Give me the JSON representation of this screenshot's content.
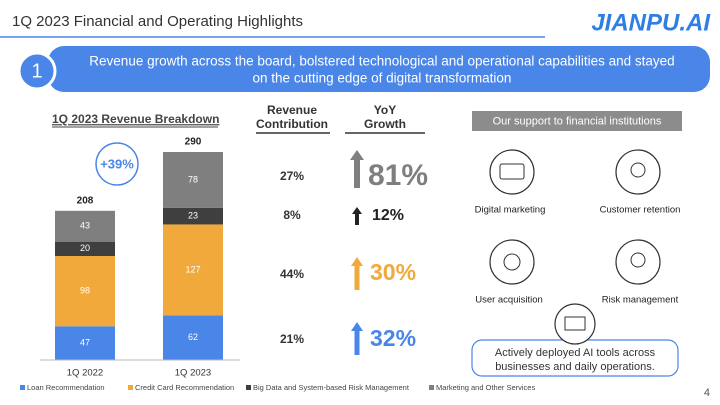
{
  "header": {
    "title": "1Q 2023 Financial and Operating Highlights",
    "logo": "JIANPU.AI",
    "page_number": "4"
  },
  "banner": {
    "number": "1",
    "lines": [
      "Revenue growth across the board, bolstered technological and operational capabilities and stayed",
      "on the cutting edge of digital transformation"
    ]
  },
  "chart_data": {
    "type": "stacked_bar",
    "title": "1Q 2023 Revenue Breakdown",
    "categories": [
      "1Q 2022",
      "1Q 2023"
    ],
    "series": [
      {
        "name": "Loan Recommendation",
        "color": "#4a86e8",
        "values": [
          47,
          62
        ]
      },
      {
        "name": "Credit Card Recommendation",
        "color": "#f2a93b",
        "values": [
          98,
          127
        ]
      },
      {
        "name": "Big Data and System-based Risk Management",
        "color": "#3f3f3f",
        "values": [
          20,
          23
        ]
      },
      {
        "name": "Marketing and Other Services",
        "color": "#7f7f7f",
        "values": [
          43,
          78
        ]
      }
    ],
    "totals": [
      208,
      290
    ],
    "annotation": "+39%"
  },
  "breakdown": {
    "headers": [
      [
        "Revenue",
        "Contribution"
      ],
      [
        "YoY",
        "Growth"
      ]
    ],
    "rows": [
      [
        "27%",
        "81%"
      ],
      [
        "8%",
        "12%"
      ],
      [
        "44%",
        "30%"
      ],
      [
        "21%",
        "32%"
      ]
    ]
  },
  "support": {
    "title": "Our support to financial institutions",
    "items": [
      "Digital marketing",
      "Customer retention",
      "User acquisition",
      "Risk management"
    ],
    "footer": [
      "Actively deployed AI tools across",
      "businesses and daily operations."
    ]
  }
}
